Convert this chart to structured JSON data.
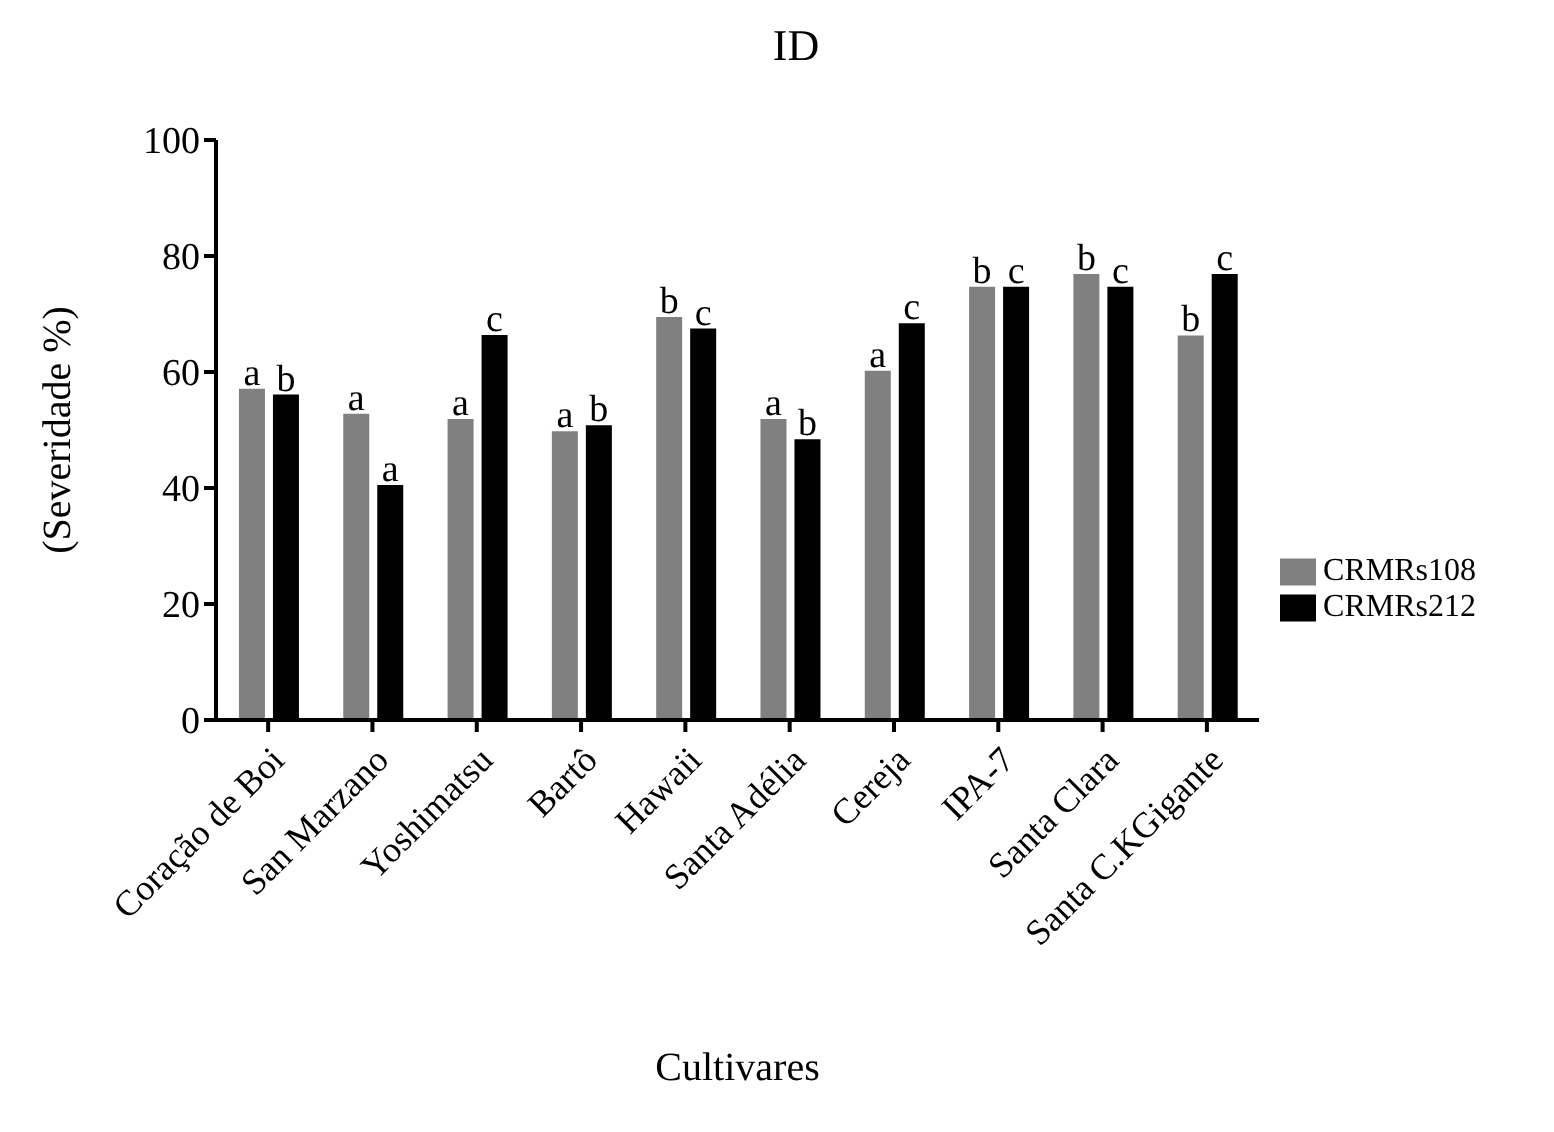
{
  "chart_data": {
    "type": "bar",
    "title": "ID",
    "xlabel": "Cultivares",
    "ylabel": "(Severidade %)",
    "categories": [
      "Coração de Boi",
      "San Marzano",
      "Yoshimatsu",
      "Bartô",
      "Hawaii",
      "Santa Adélia",
      "Cereja",
      "IPA-7",
      "Santa Clara",
      "Santa C.KGigante"
    ],
    "series": [
      {
        "name": "CRMRs108",
        "color": "#808080",
        "values": [
          57.1,
          52.8,
          51.9,
          49.8,
          69.5,
          51.9,
          60.2,
          74.7,
          76.9,
          66.3
        ],
        "value_labels": [
          "a",
          "a",
          "a",
          "a",
          "b",
          "a",
          "a",
          "b",
          "b",
          "b"
        ]
      },
      {
        "name": "CRMRs212",
        "color": "#000000",
        "values": [
          56.1,
          40.5,
          66.4,
          50.8,
          67.5,
          48.4,
          68.4,
          74.7,
          74.7,
          76.9
        ],
        "value_labels": [
          "b",
          "a",
          "c",
          "b",
          "c",
          "b",
          "c",
          "c",
          "c",
          "c"
        ]
      }
    ],
    "ylim": [
      0,
      100
    ],
    "yticks": [
      0,
      20,
      40,
      60,
      80,
      100
    ],
    "grid": false,
    "legend": "right"
  }
}
